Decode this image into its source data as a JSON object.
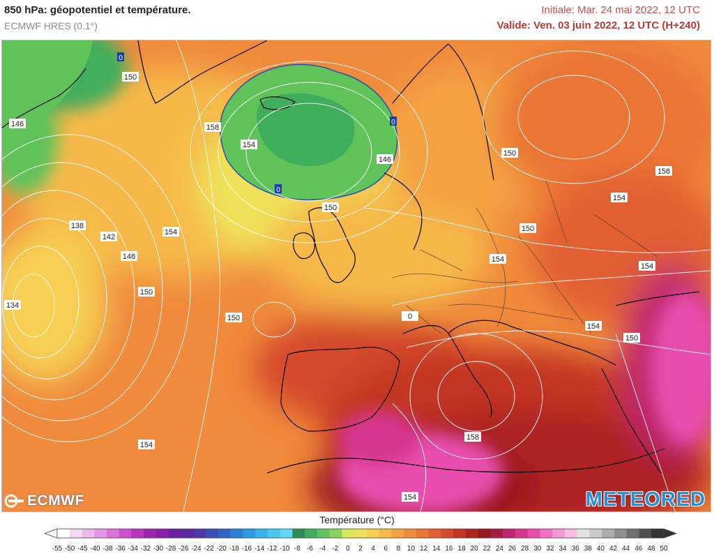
{
  "header": {
    "title": "850 hPa: géopotentiel et température.",
    "model": "ECMWF HRES (0.1°)",
    "initial": "Initiale: Mar. 24 mai 2022, 12 UTC",
    "valid": "Valide: Ven. 03 juin 2022, 12 UTC (H+240)"
  },
  "map": {
    "contour_labels": [
      "150",
      "146",
      "158",
      "154",
      "146",
      "150",
      "138",
      "142",
      "146",
      "134",
      "150",
      "154",
      "150",
      "154",
      "154",
      "158",
      "150",
      "154",
      "150",
      "154",
      "154",
      "150",
      "158",
      "154",
      "0",
      "0",
      "0"
    ]
  },
  "logos": {
    "left": "ECMWF",
    "right": "METEORED"
  },
  "legend": {
    "title": "Température (°C)",
    "ticks": [
      "-55",
      "-50",
      "-45",
      "-40",
      "-38",
      "-36",
      "-34",
      "-32",
      "-30",
      "-28",
      "-26",
      "-24",
      "-22",
      "-20",
      "-18",
      "-16",
      "-14",
      "-12",
      "-10",
      "-8",
      "-6",
      "-4",
      "-2",
      "0",
      "2",
      "4",
      "6",
      "8",
      "10",
      "12",
      "14",
      "16",
      "18",
      "20",
      "22",
      "24",
      "26",
      "28",
      "30",
      "32",
      "34",
      "36",
      "38",
      "40",
      "42",
      "44",
      "46",
      "48",
      "50"
    ],
    "colors": [
      "#ffffff",
      "#f4d8f4",
      "#ecb8ec",
      "#e396e6",
      "#d971db",
      "#cc4fcf",
      "#b835c0",
      "#9c26b0",
      "#8a1ea8",
      "#6d1fa2",
      "#5b2a9e",
      "#4a3aa6",
      "#3a50b4",
      "#2f66c4",
      "#2a80d6",
      "#2b9ae3",
      "#35b2ec",
      "#4ac6f0",
      "#60d7f3",
      "#2e8b57",
      "#3fae5c",
      "#5fc35a",
      "#89d25a",
      "#d8e85c",
      "#efe25a",
      "#f6cf52",
      "#f6b94a",
      "#f4a242",
      "#f08a3c",
      "#ea7536",
      "#e15f30",
      "#d4482a",
      "#c33424",
      "#ad2320",
      "#96191e",
      "#a31d45",
      "#c0256e",
      "#d83490",
      "#e84dad",
      "#f071c2",
      "#f597d4",
      "#f6bce2",
      "#e2e2e2",
      "#c9c9c9",
      "#acacac",
      "#8f8f8f",
      "#6f6f6f",
      "#4f4f4f",
      "#333333"
    ]
  }
}
